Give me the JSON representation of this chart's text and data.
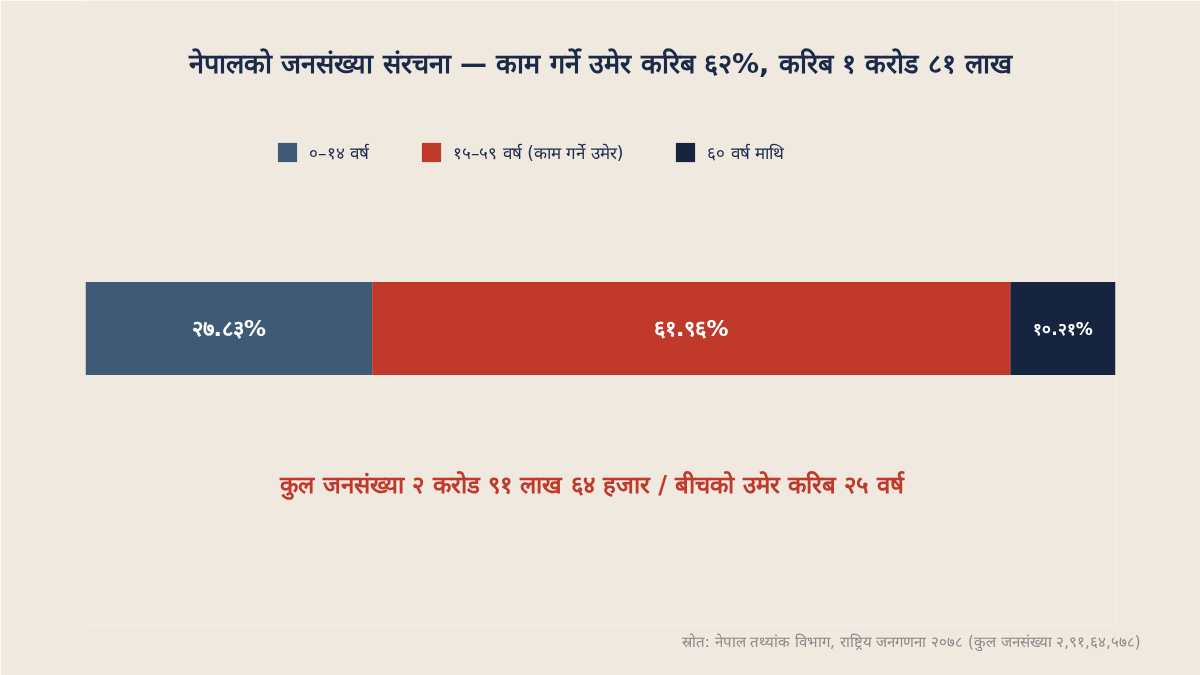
{
  "chart_data": {
    "type": "bar",
    "orientation": "horizontal",
    "stacked": true,
    "title": "नेपालको जनसंख्या संरचना — काम गर्ने उमेर करिब ६२%, करिब १ करोड ८१ लाख",
    "categories": [
      null
    ],
    "xlim": [
      0,
      100
    ],
    "tick_labels": false,
    "grid": false,
    "legend": "top",
    "series": [
      {
        "name": "०–१४ वर्ष",
        "color": "#3e5a75",
        "values": [
          27.83
        ],
        "value_labels": [
          "२७.८३%"
        ]
      },
      {
        "name": "१५–५९ वर्ष (काम गर्ने उमेर)",
        "color": "#c0392b",
        "values": [
          61.96
        ],
        "value_labels": [
          "६१.९६%"
        ]
      },
      {
        "name": "६० वर्ष माथि",
        "color": "#16243f",
        "values": [
          10.21
        ],
        "value_labels": [
          "१०.२१%"
        ]
      }
    ],
    "annotations": [
      "कुल जनसंख्या २ करोड ९१ लाख ६४ हजार  /  बीचको उमेर करिब २५ वर्ष",
      "स्रोत: नेपाल तथ्यांक विभाग, राष्ट्रिय जनगणना २०७८ (कुल जनसंख्या २,९१,६४,५७८)"
    ]
  }
}
